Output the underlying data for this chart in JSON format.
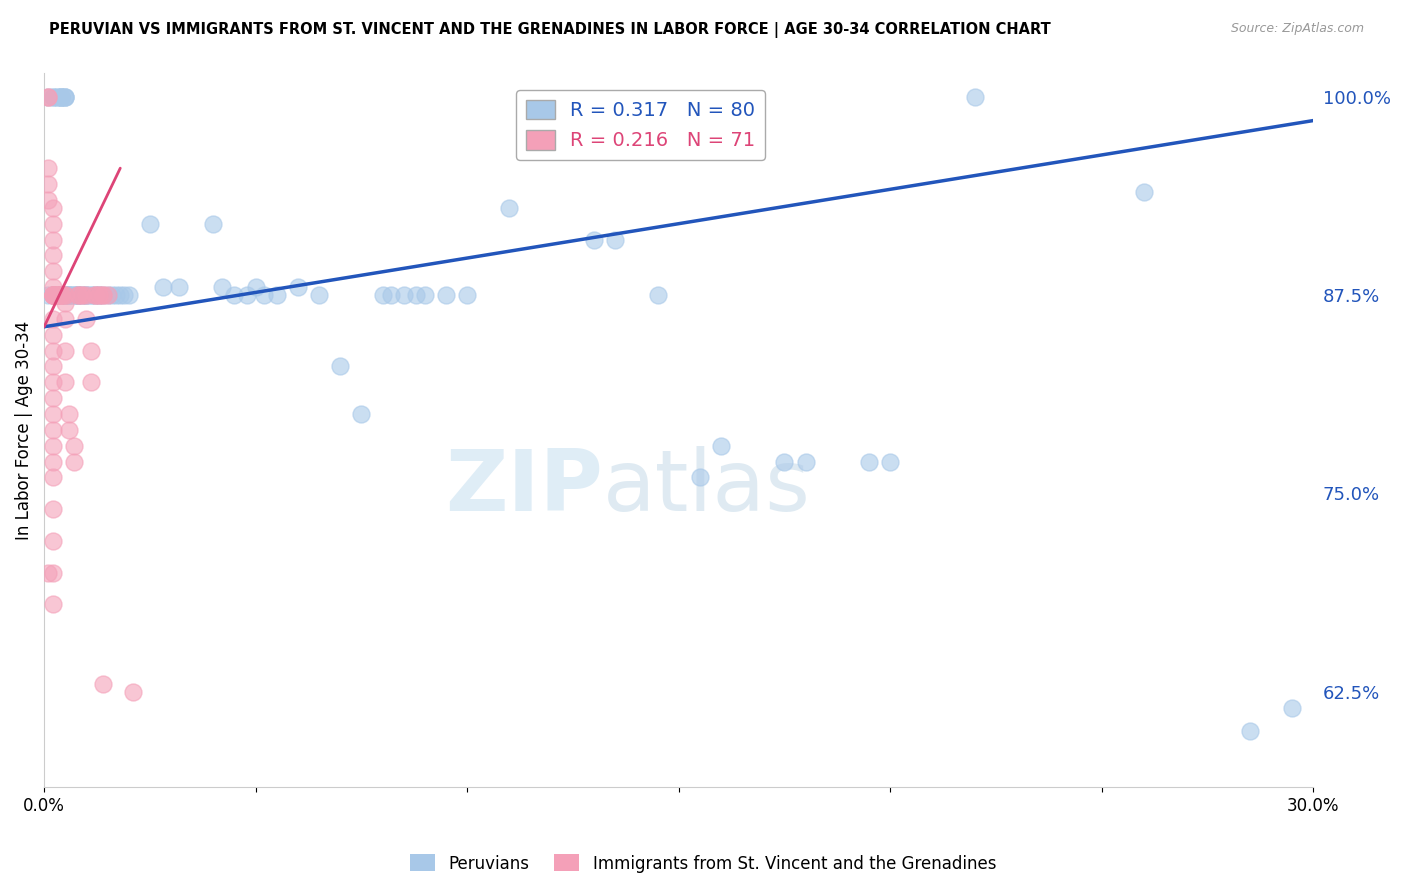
{
  "title": "PERUVIAN VS IMMIGRANTS FROM ST. VINCENT AND THE GRENADINES IN LABOR FORCE | AGE 30-34 CORRELATION CHART",
  "source": "Source: ZipAtlas.com",
  "ylabel": "In Labor Force | Age 30-34",
  "x_min": 0.0,
  "x_max": 0.3,
  "y_min": 0.565,
  "y_max": 1.015,
  "y_ticks": [
    0.625,
    0.75,
    0.875,
    1.0
  ],
  "y_tick_labels": [
    "62.5%",
    "75.0%",
    "87.5%",
    "100.0%"
  ],
  "x_ticks": [
    0.0,
    0.05,
    0.1,
    0.15,
    0.2,
    0.25,
    0.3
  ],
  "x_tick_labels": [
    "0.0%",
    "",
    "",
    "",
    "",
    "",
    "30.0%"
  ],
  "blue_color": "#a8c8e8",
  "pink_color": "#f4a0b8",
  "blue_line_color": "#2255bb",
  "pink_line_color": "#dd4477",
  "R_blue": 0.317,
  "N_blue": 80,
  "R_pink": 0.216,
  "N_pink": 71,
  "blue_label": "Peruvians",
  "pink_label": "Immigrants from St. Vincent and the Grenadines",
  "watermark": "ZIPAtlas",
  "grid_color": "#bbbbbb",
  "blue_line_x0": 0.0,
  "blue_line_y0": 0.855,
  "blue_line_x1": 0.3,
  "blue_line_y1": 0.985,
  "pink_line_x0": 0.0,
  "pink_line_y0": 0.855,
  "pink_line_x1": 0.018,
  "pink_line_y1": 0.955,
  "blue_scatter": [
    [
      0.001,
      1.0
    ],
    [
      0.002,
      1.0
    ],
    [
      0.002,
      1.0
    ],
    [
      0.003,
      1.0
    ],
    [
      0.003,
      1.0
    ],
    [
      0.004,
      1.0
    ],
    [
      0.004,
      1.0
    ],
    [
      0.004,
      1.0
    ],
    [
      0.004,
      1.0
    ],
    [
      0.005,
      1.0
    ],
    [
      0.005,
      1.0
    ],
    [
      0.005,
      1.0
    ],
    [
      0.001,
      0.875
    ],
    [
      0.002,
      0.875
    ],
    [
      0.003,
      0.875
    ],
    [
      0.004,
      0.875
    ],
    [
      0.005,
      0.875
    ],
    [
      0.005,
      0.875
    ],
    [
      0.005,
      0.875
    ],
    [
      0.006,
      0.875
    ],
    [
      0.006,
      0.875
    ],
    [
      0.006,
      0.875
    ],
    [
      0.006,
      0.875
    ],
    [
      0.007,
      0.875
    ],
    [
      0.007,
      0.875
    ],
    [
      0.007,
      0.875
    ],
    [
      0.008,
      0.875
    ],
    [
      0.008,
      0.875
    ],
    [
      0.008,
      0.875
    ],
    [
      0.008,
      0.875
    ],
    [
      0.009,
      0.875
    ],
    [
      0.009,
      0.875
    ],
    [
      0.01,
      0.875
    ],
    [
      0.01,
      0.875
    ],
    [
      0.01,
      0.875
    ],
    [
      0.011,
      0.875
    ],
    [
      0.011,
      0.875
    ],
    [
      0.012,
      0.875
    ],
    [
      0.012,
      0.875
    ],
    [
      0.013,
      0.875
    ],
    [
      0.013,
      0.875
    ],
    [
      0.014,
      0.875
    ],
    [
      0.015,
      0.875
    ],
    [
      0.016,
      0.875
    ],
    [
      0.017,
      0.875
    ],
    [
      0.018,
      0.875
    ],
    [
      0.019,
      0.875
    ],
    [
      0.02,
      0.875
    ],
    [
      0.025,
      0.92
    ],
    [
      0.028,
      0.88
    ],
    [
      0.032,
      0.88
    ],
    [
      0.04,
      0.92
    ],
    [
      0.042,
      0.88
    ],
    [
      0.045,
      0.875
    ],
    [
      0.048,
      0.875
    ],
    [
      0.05,
      0.88
    ],
    [
      0.052,
      0.875
    ],
    [
      0.055,
      0.875
    ],
    [
      0.06,
      0.88
    ],
    [
      0.065,
      0.875
    ],
    [
      0.07,
      0.83
    ],
    [
      0.075,
      0.8
    ],
    [
      0.08,
      0.875
    ],
    [
      0.082,
      0.875
    ],
    [
      0.085,
      0.875
    ],
    [
      0.088,
      0.875
    ],
    [
      0.09,
      0.875
    ],
    [
      0.095,
      0.875
    ],
    [
      0.1,
      0.875
    ],
    [
      0.11,
      0.93
    ],
    [
      0.13,
      0.91
    ],
    [
      0.135,
      0.91
    ],
    [
      0.145,
      0.875
    ],
    [
      0.155,
      0.76
    ],
    [
      0.16,
      0.78
    ],
    [
      0.175,
      0.77
    ],
    [
      0.18,
      0.77
    ],
    [
      0.195,
      0.77
    ],
    [
      0.2,
      0.77
    ],
    [
      0.22,
      1.0
    ],
    [
      0.26,
      0.94
    ],
    [
      0.285,
      0.6
    ],
    [
      0.295,
      0.615
    ]
  ],
  "pink_scatter": [
    [
      0.001,
      1.0
    ],
    [
      0.001,
      1.0
    ],
    [
      0.001,
      0.955
    ],
    [
      0.001,
      0.945
    ],
    [
      0.001,
      0.935
    ],
    [
      0.002,
      0.93
    ],
    [
      0.002,
      0.92
    ],
    [
      0.002,
      0.91
    ],
    [
      0.002,
      0.9
    ],
    [
      0.002,
      0.89
    ],
    [
      0.002,
      0.88
    ],
    [
      0.002,
      0.875
    ],
    [
      0.002,
      0.875
    ],
    [
      0.002,
      0.875
    ],
    [
      0.002,
      0.875
    ],
    [
      0.002,
      0.875
    ],
    [
      0.002,
      0.875
    ],
    [
      0.002,
      0.86
    ],
    [
      0.002,
      0.85
    ],
    [
      0.002,
      0.84
    ],
    [
      0.002,
      0.83
    ],
    [
      0.002,
      0.82
    ],
    [
      0.002,
      0.81
    ],
    [
      0.002,
      0.8
    ],
    [
      0.002,
      0.79
    ],
    [
      0.002,
      0.78
    ],
    [
      0.002,
      0.77
    ],
    [
      0.002,
      0.76
    ],
    [
      0.002,
      0.74
    ],
    [
      0.002,
      0.72
    ],
    [
      0.002,
      0.7
    ],
    [
      0.003,
      0.875
    ],
    [
      0.003,
      0.875
    ],
    [
      0.003,
      0.875
    ],
    [
      0.003,
      0.875
    ],
    [
      0.004,
      0.875
    ],
    [
      0.004,
      0.875
    ],
    [
      0.004,
      0.875
    ],
    [
      0.004,
      0.875
    ],
    [
      0.005,
      0.875
    ],
    [
      0.005,
      0.875
    ],
    [
      0.005,
      0.87
    ],
    [
      0.005,
      0.86
    ],
    [
      0.005,
      0.84
    ],
    [
      0.005,
      0.82
    ],
    [
      0.006,
      0.8
    ],
    [
      0.006,
      0.79
    ],
    [
      0.007,
      0.78
    ],
    [
      0.007,
      0.77
    ],
    [
      0.008,
      0.875
    ],
    [
      0.008,
      0.875
    ],
    [
      0.009,
      0.875
    ],
    [
      0.009,
      0.875
    ],
    [
      0.01,
      0.875
    ],
    [
      0.01,
      0.86
    ],
    [
      0.011,
      0.84
    ],
    [
      0.011,
      0.82
    ],
    [
      0.012,
      0.875
    ],
    [
      0.012,
      0.875
    ],
    [
      0.013,
      0.875
    ],
    [
      0.013,
      0.875
    ],
    [
      0.014,
      0.875
    ],
    [
      0.014,
      0.875
    ],
    [
      0.015,
      0.875
    ],
    [
      0.001,
      0.7
    ],
    [
      0.002,
      0.68
    ],
    [
      0.014,
      0.63
    ],
    [
      0.021,
      0.625
    ]
  ]
}
